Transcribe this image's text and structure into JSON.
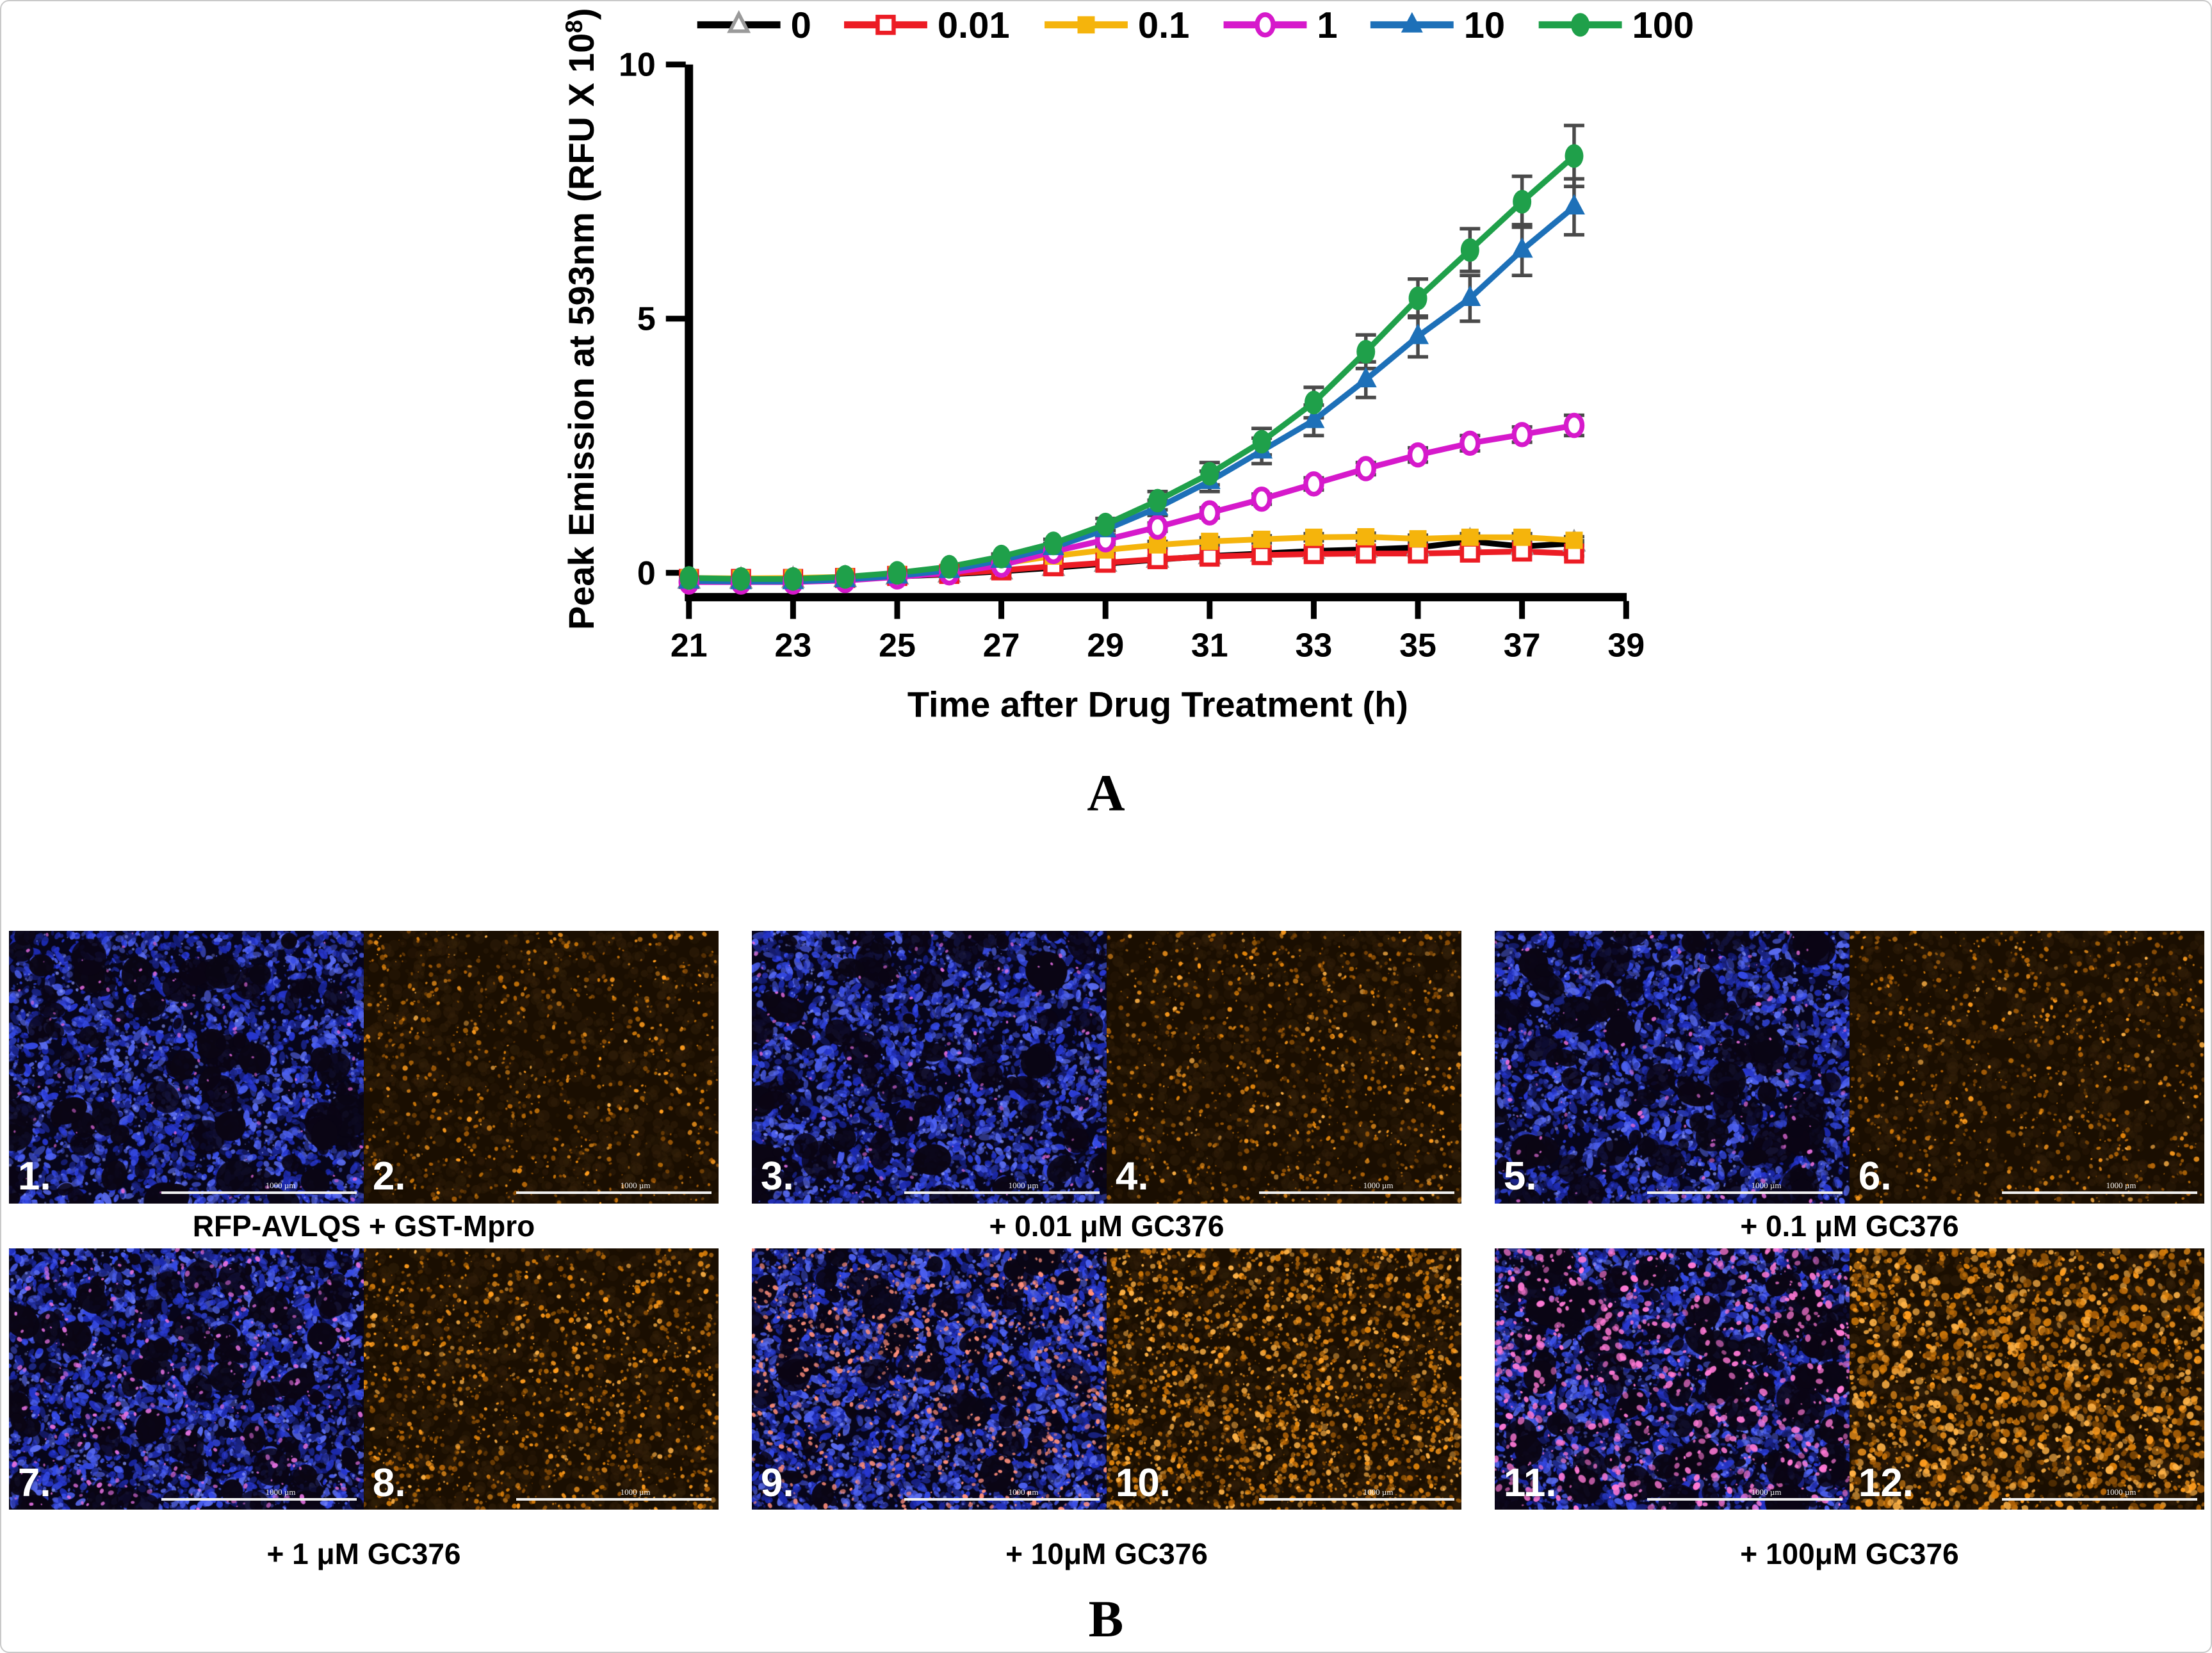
{
  "figure": {
    "panel_a_label": "A",
    "panel_b_label": "B"
  },
  "chart_data": {
    "type": "line",
    "title": "",
    "xlabel": "Time after Drug Treatment (h)",
    "ylabel": "Peak Emission at 593nm (RFU X 10⁸)",
    "ylabel_parts": {
      "main": "Peak Emission at 593nm (RFU X 10",
      "sup": "8",
      "end": ")"
    },
    "legend_position": "top",
    "grid": false,
    "xlim": [
      21,
      39
    ],
    "ylim": [
      0,
      10
    ],
    "x_ticks": [
      "21",
      "23",
      "25",
      "27",
      "29",
      "31",
      "33",
      "35",
      "37",
      "39"
    ],
    "y_ticks": [
      "0",
      "5",
      "10"
    ],
    "x": [
      21,
      22,
      23,
      24,
      25,
      26,
      27,
      28,
      29,
      30,
      31,
      32,
      33,
      34,
      35,
      36,
      37,
      38
    ],
    "error_bar_color": "#4a4a4a",
    "series": [
      {
        "name": "0",
        "color": "#000000",
        "marker": "triangle-open",
        "marker_color": "#9a9a9a",
        "values": [
          -0.15,
          -0.15,
          -0.14,
          -0.12,
          -0.07,
          -0.03,
          0.03,
          0.1,
          0.18,
          0.26,
          0.33,
          0.38,
          0.43,
          0.46,
          0.5,
          0.62,
          0.52,
          0.58
        ],
        "err": [
          0,
          0,
          0,
          0,
          0,
          0,
          0.04,
          0.04,
          0.05,
          0.05,
          0.05,
          0.05,
          0.05,
          0.05,
          0.05,
          0.05,
          0.05,
          0.05
        ]
      },
      {
        "name": "0.01",
        "color": "#ec1c24",
        "marker": "square-open",
        "values": [
          -0.12,
          -0.12,
          -0.12,
          -0.1,
          -0.06,
          -0.02,
          0.05,
          0.13,
          0.2,
          0.27,
          0.32,
          0.35,
          0.37,
          0.38,
          0.38,
          0.4,
          0.42,
          0.38
        ],
        "err": [
          0,
          0,
          0,
          0,
          0,
          0,
          0.04,
          0.04,
          0.05,
          0.05,
          0.05,
          0.05,
          0.05,
          0.05,
          0.05,
          0.05,
          0.05,
          0.05
        ]
      },
      {
        "name": "0.1",
        "color": "#f5b40c",
        "marker": "square",
        "values": [
          -0.1,
          -0.11,
          -0.1,
          -0.08,
          -0.03,
          0.05,
          0.18,
          0.33,
          0.45,
          0.55,
          0.62,
          0.66,
          0.7,
          0.71,
          0.67,
          0.7,
          0.7,
          0.64
        ],
        "err": [
          0,
          0,
          0,
          0,
          0,
          0,
          0.05,
          0.06,
          0.06,
          0.07,
          0.07,
          0.07,
          0.07,
          0.07,
          0.07,
          0.07,
          0.07,
          0.07
        ]
      },
      {
        "name": "1",
        "color": "#d619cb",
        "marker": "circle-open",
        "values": [
          -0.18,
          -0.18,
          -0.18,
          -0.15,
          -0.08,
          0.0,
          0.15,
          0.42,
          0.65,
          0.9,
          1.18,
          1.45,
          1.75,
          2.05,
          2.32,
          2.55,
          2.72,
          2.9
        ],
        "err": [
          0,
          0,
          0,
          0,
          0,
          0,
          0.04,
          0.05,
          0.06,
          0.08,
          0.1,
          0.1,
          0.12,
          0.12,
          0.14,
          0.15,
          0.15,
          0.2
        ]
      },
      {
        "name": "10",
        "color": "#1d70b8",
        "marker": "triangle",
        "values": [
          -0.16,
          -0.17,
          -0.17,
          -0.13,
          -0.06,
          0.05,
          0.25,
          0.5,
          0.85,
          1.28,
          1.8,
          2.4,
          3.0,
          3.8,
          4.65,
          5.4,
          6.35,
          7.2
        ],
        "err": [
          0,
          0,
          0,
          0,
          0,
          0,
          0.05,
          0.08,
          0.1,
          0.15,
          0.2,
          0.25,
          0.3,
          0.35,
          0.4,
          0.45,
          0.5,
          0.55
        ]
      },
      {
        "name": "100",
        "color": "#1fa04a",
        "marker": "circle",
        "values": [
          -0.1,
          -0.12,
          -0.12,
          -0.08,
          0.0,
          0.12,
          0.32,
          0.58,
          0.95,
          1.42,
          1.95,
          2.58,
          3.35,
          4.35,
          5.4,
          6.35,
          7.3,
          8.2
        ],
        "err": [
          0,
          0,
          0,
          0,
          0,
          0,
          0.05,
          0.08,
          0.12,
          0.18,
          0.22,
          0.26,
          0.3,
          0.33,
          0.38,
          0.42,
          0.5,
          0.6
        ]
      }
    ]
  },
  "panel_b": {
    "scale_bar_label": "1000 µm",
    "groups": [
      {
        "label": "RFP-AVLQS + GST-Mpro",
        "images": [
          {
            "num": "1.",
            "channel": "blue",
            "holes": 85,
            "pink": 90,
            "pink_rmax": 4,
            "pink_color": "#d966d6"
          },
          {
            "num": "2.",
            "channel": "orange",
            "specks": 850,
            "bright": 0.45,
            "rmax": 3.2
          }
        ]
      },
      {
        "label": "+ 0.01 μM GC376",
        "images": [
          {
            "num": "3.",
            "channel": "blue",
            "holes": 80,
            "pink": 120,
            "pink_rmax": 4,
            "pink_color": "#da6ad8"
          },
          {
            "num": "4.",
            "channel": "orange",
            "specks": 1000,
            "bright": 0.5,
            "rmax": 3.2
          }
        ]
      },
      {
        "label": "+ 0.1 μM GC376",
        "images": [
          {
            "num": "5.",
            "channel": "blue",
            "holes": 100,
            "pink": 140,
            "pink_rmax": 4.5,
            "pink_color": "#dd6ad4"
          },
          {
            "num": "6.",
            "channel": "orange",
            "specks": 900,
            "bright": 0.5,
            "rmax": 3.2
          }
        ]
      },
      {
        "label": "+ 1 μM GC376",
        "images": [
          {
            "num": "7.",
            "channel": "blue",
            "holes": 90,
            "pink": 320,
            "pink_rmax": 5,
            "pink_color": "#e06fdd"
          },
          {
            "num": "8.",
            "channel": "orange",
            "specks": 1300,
            "bright": 0.62,
            "rmax": 3.6
          }
        ]
      },
      {
        "label": "+ 10μM GC376",
        "images": [
          {
            "num": "9.",
            "channel": "blue",
            "holes": 70,
            "pink": 650,
            "pink_rmax": 5,
            "pink_color": "#ff8f7c"
          },
          {
            "num": "10.",
            "channel": "orange",
            "specks": 2300,
            "bright": 0.8,
            "rmax": 4.2
          }
        ]
      },
      {
        "label": "+ 100μM GC376",
        "images": [
          {
            "num": "11.",
            "channel": "blue",
            "holes": 135,
            "pink": 640,
            "pink_rmax": 7,
            "pink_color": "#ff7ad6"
          },
          {
            "num": "12.",
            "channel": "orange",
            "specks": 2100,
            "bright": 1.0,
            "rmax": 6
          }
        ]
      }
    ]
  }
}
